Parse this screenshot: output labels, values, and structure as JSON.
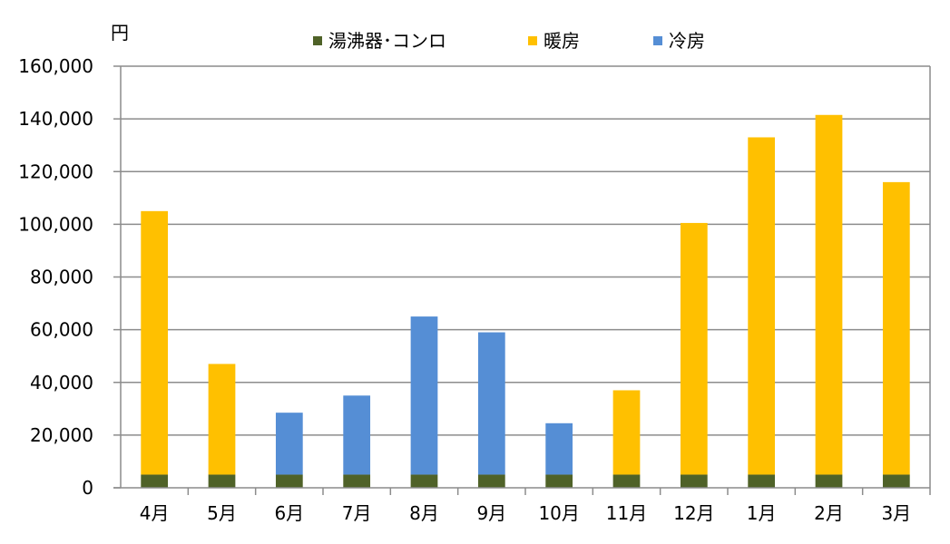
{
  "chart_data": {
    "type": "bar",
    "stacked": true,
    "ylabel": "円",
    "ylim": [
      0,
      160000
    ],
    "ytick_step": 20000,
    "yticks": [
      "0",
      "20,000",
      "40,000",
      "60,000",
      "80,000",
      "100,000",
      "120,000",
      "140,000",
      "160,000"
    ],
    "grid": true,
    "legend_position": "top",
    "categories": [
      "4月",
      "5月",
      "6月",
      "7月",
      "8月",
      "9月",
      "10月",
      "11月",
      "12月",
      "1月",
      "2月",
      "3月"
    ],
    "series": [
      {
        "name": "湯沸器･コンロ",
        "color": "#4f6228",
        "values": [
          5000,
          5000,
          5000,
          5000,
          5000,
          5000,
          5000,
          5000,
          5000,
          5000,
          5000,
          5000
        ]
      },
      {
        "name": "暖房",
        "color": "#ffc000",
        "values": [
          100000,
          42000,
          0,
          0,
          0,
          0,
          0,
          32000,
          95500,
          128000,
          136500,
          111000
        ]
      },
      {
        "name": "冷房",
        "color": "#558ed5",
        "values": [
          0,
          0,
          23500,
          30000,
          60000,
          54000,
          19500,
          0,
          0,
          0,
          0,
          0
        ]
      }
    ]
  }
}
